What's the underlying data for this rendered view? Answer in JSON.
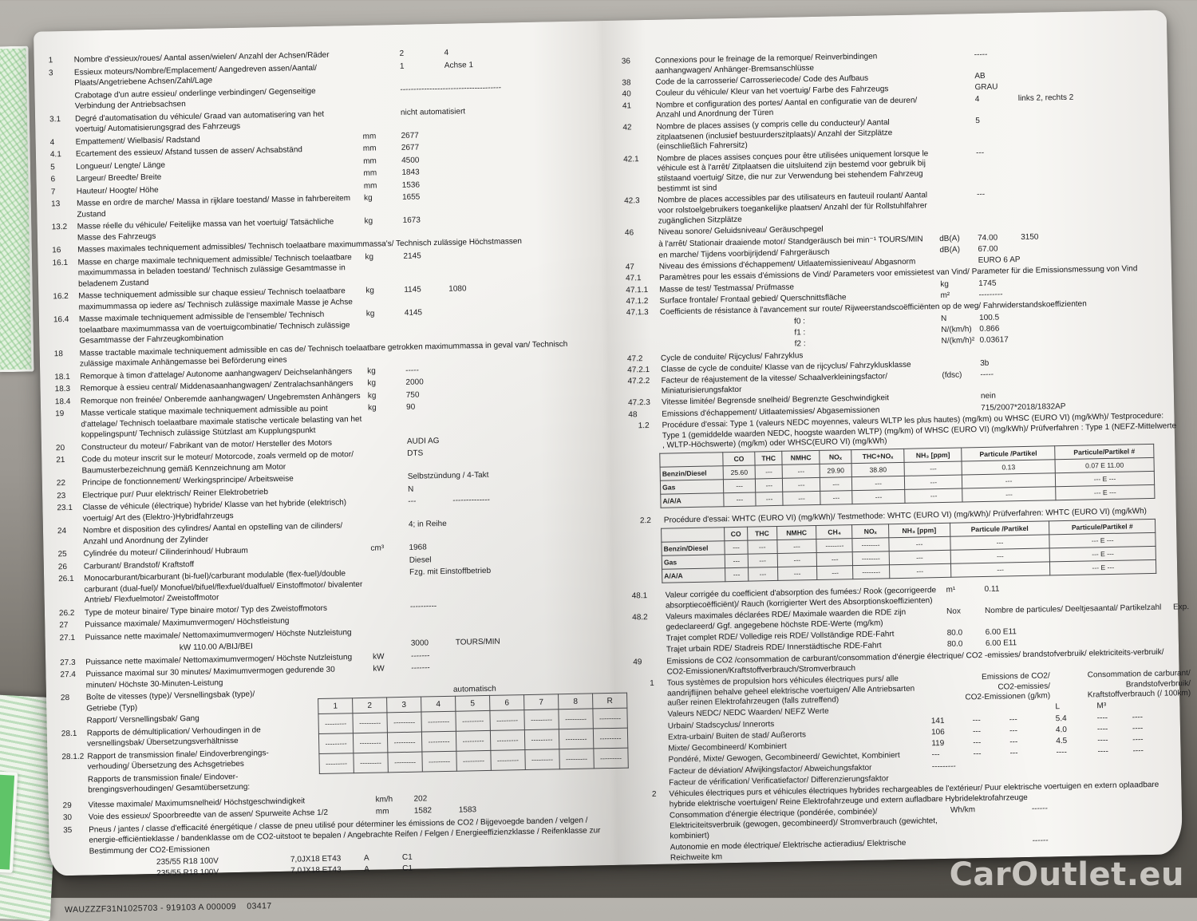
{
  "watermark": "CarOutlet.eu",
  "left_page": {
    "rows_a": [
      {
        "n": "1",
        "l": "Nombre d'essieux/roues/ Aantal assen/wielen/ Anzahl der Achsen/Räder",
        "u": "",
        "v": "2",
        "v2": "4"
      },
      {
        "n": "3",
        "l": "Essieux moteurs/Nombre/Emplacement/ Aangedreven assen/Aantal/ Plaats/Angetriebene Achsen/Zahl/Lage",
        "u": "",
        "v": "1",
        "v2": "Achse 1"
      },
      {
        "n": "",
        "l": "Crabotage d'un autre essieu/ onderlinge verbindingen/ Gegenseitige Verbindung der Antriebsachsen",
        "u": "",
        "v": "--------------------------------------",
        "v2": ""
      },
      {
        "n": "3.1",
        "l": "Degré d'automatisation du véhicule/ Graad van automatisering van het voertuig/ Automatisierungsgrad des Fahrzeugs",
        "u": "",
        "v": "nicht automatisiert",
        "v2": ""
      },
      {
        "n": "4",
        "l": "Empattement/ Wielbasis/ Radstand",
        "u": "mm",
        "v": "2677",
        "v2": ""
      },
      {
        "n": "4.1",
        "l": "Ecartement des essieux/ Afstand tussen de assen/ Achsabständ",
        "u": "mm",
        "v": "2677",
        "v2": ""
      },
      {
        "n": "5",
        "l": "Longueur/ Lengte/ Länge",
        "u": "mm",
        "v": "4500",
        "v2": ""
      },
      {
        "n": "6",
        "l": "Largeur/ Breedte/ Breite",
        "u": "mm",
        "v": "1843",
        "v2": ""
      },
      {
        "n": "7",
        "l": "Hauteur/ Hoogte/ Höhe",
        "u": "mm",
        "v": "1536",
        "v2": ""
      },
      {
        "n": "13",
        "l": "Masse en ordre de marche/ Massa in rijklare toestand/ Masse in fahrbereitem Zustand",
        "u": "kg",
        "v": "1655",
        "v2": ""
      },
      {
        "n": "13.2",
        "l": "Masse réelle du véhicule/ Feitelijke massa van het voertuig/ Tatsächliche Masse des Fahrzeugs",
        "u": "kg",
        "v": "1673",
        "v2": ""
      },
      {
        "n": "16",
        "l": "Masses maximales techniquement admissibles/ Technisch toelaatbare maximummassa's/ Technisch zulässige Höchstmassen",
        "cls": "full"
      },
      {
        "n": "16.1",
        "l": "Masse en charge maximale techniquement admissible/ Technisch toelaatbare maximummassa in beladen toestand/ Technisch zulässige Gesamtmasse in beladenem Zustand",
        "u": "kg",
        "v": "2145",
        "v2": ""
      },
      {
        "n": "16.2",
        "l": "Masse techniquement admissible sur chaque essieu/ Technisch toelaatbare maximummassa op iedere as/ Technisch zulässige maximale Masse je Achse",
        "u": "kg",
        "v": "1145",
        "v2": "1080"
      },
      {
        "n": "16.4",
        "l": "Masse maximale techniquement admissible de l'ensemble/ Technisch toelaatbare maximummassa van de voertuigcombinatie/ Technisch zulässige Gesamtmasse der Fahrzeugkombination",
        "u": "kg",
        "v": "4145",
        "v2": ""
      },
      {
        "n": "18",
        "l": "Masse tractable maximale techniquement admissible en cas de/ Technisch toelaatbare getrokken maximummassa in geval van/ Technisch zulässige maximale Anhängemasse bei Beförderung eines",
        "cls": "full"
      },
      {
        "n": "18.1",
        "l": "Remorque à timon d'attelage/ Autonome aanhangwagen/ Deichselanhängers",
        "u": "kg",
        "v": "-----",
        "v2": ""
      },
      {
        "n": "18.3",
        "l": "Remorque à essieu central/ Middenasaanhangwagen/ Zentralachsanhängers",
        "u": "kg",
        "v": "2000",
        "v2": ""
      },
      {
        "n": "18.4",
        "l": "Remorque non freinée/ Onberemde aanhangwagen/ Ungebremsten Anhängers",
        "u": "kg",
        "v": "750",
        "v2": ""
      },
      {
        "n": "19",
        "l": "Masse verticale statique maximale techniquement admissible au point d'attelage/ Technisch toelaatbare maximale statische verticale belasting van het koppelingspunt/ Technisch zulässige Stützlast am Kupplungspunkt",
        "u": "kg",
        "v": "90",
        "v2": ""
      },
      {
        "n": "20",
        "l": "Constructeur du moteur/ Fabrikant van de motor/ Hersteller des Motors",
        "u": "",
        "v": "AUDI AG",
        "v2": ""
      },
      {
        "n": "21",
        "l": "Code du moteur inscrit sur le moteur/ Motorcode, zoals vermeld op de motor/ Baumusterbezeichnung gemäß Kennzeichnung am Motor",
        "u": "",
        "v": "DTS",
        "v2": ""
      },
      {
        "n": "22",
        "l": "Principe de fonctionnement/ Werkingsprincipe/ Arbeitsweise",
        "u": "",
        "v": "Selbstzündung / 4-Takt",
        "v2": ""
      },
      {
        "n": "23",
        "l": "Electrique pur/ Puur elektrisch/ Reiner Elektrobetrieb",
        "u": "",
        "v": "N",
        "v2": ""
      },
      {
        "n": "23.1",
        "l": "Classe de véhicule (électrique) hybride/ Klasse van het hybride (elektrisch) voertuig/ Art des (Elektro-)Hybridfahrzeugs",
        "u": "",
        "v": "---",
        "v2": "--------------"
      },
      {
        "n": "24",
        "l": "Nombre et disposition des cylindres/ Aantal en opstelling van de cilinders/ Anzahl und Anordnung der Zylinder",
        "u": "",
        "v": "4; in Reihe",
        "v2": ""
      },
      {
        "n": "25",
        "l": "Cylindrée du moteur/ Cilinderinhoud/ Hubraum",
        "u": "cm³",
        "v": "1968",
        "v2": ""
      },
      {
        "n": "26",
        "l": "Carburant/ Brandstof/ Kraftstoff",
        "u": "",
        "v": "Diesel",
        "v2": ""
      },
      {
        "n": "26.1",
        "l": "Monocarburant/bicarburant (bi-fuel)/carburant modulable (flex-fuel)/double carburant (dual-fuel)/ Monofuel/bifuel/flexfuel/dualfuel/ Einstoffmotor/ bivalenter Antrieb/ Flexfuelmotor/ Zweistoffmotor",
        "u": "",
        "v": "Fzg. mit Einstoffbetrieb",
        "v2": ""
      },
      {
        "n": "26.2",
        "l": "Type de moteur binaire/ Type binaire motor/ Typ des Zweistoffmotors",
        "u": "",
        "v": "----------",
        "v2": ""
      },
      {
        "n": "27",
        "l": "Puissance maximale/ Maximumvermogen/ Höchstleistung",
        "cls": "full"
      },
      {
        "n": "27.1",
        "l": "Puissance nette maximale/ Nettomaximumvermogen/ Höchste Nutzleistung",
        "cls": "full"
      },
      {
        "n": "",
        "l": "kW  110.00 A/BIJ/BEI",
        "u": "",
        "v": "3000",
        "v2": "TOURS/MIN",
        "cls": "kwline"
      },
      {
        "n": "27.3",
        "l": "Puissance nette maximale/ Nettomaximumvermogen/ Höchste Nutzleistung",
        "u": "kW",
        "v": "-------",
        "v2": ""
      },
      {
        "n": "27.4",
        "l": "Puissance maximal sur 30 minutes/ Maximumvermogen gedurende 30 minuten/ Höchste 30-Minuten-Leistung",
        "u": "kW",
        "v": "-------",
        "v2": ""
      }
    ],
    "gear": {
      "labels": [
        {
          "n": "28",
          "l": "Boîte de vitesses (type)/ Versnellingsbak (type)/ Getriebe (Typ)"
        },
        {
          "n": "",
          "l": "Rapport/ Versnellingsbak/ Gang"
        },
        {
          "n": "28.1",
          "l": "Rapports de démultiplication/ Verhoudingen in de versnellingsbak/ Übersetzungsverhältnisse"
        },
        {
          "n": "28.1.2",
          "l": "Rapport de transmission finale/ Eindoverbrengings- verhouding/ Übersetzung des Achsgetriebes"
        },
        {
          "n": "",
          "l": "Rapports de transmission finale/ Eindover- brengingsverhoudingen/ Gesamtübersetzung:"
        }
      ],
      "type_value": "automatisch",
      "headers": [
        "1",
        "2",
        "3",
        "4",
        "5",
        "6",
        "7",
        "8",
        "R"
      ],
      "dash": "---------",
      "data_row_count": 3
    },
    "rows_b": [
      {
        "n": "29",
        "l": "Vitesse maximale/ Maximumsnelheid/ Höchstgeschwindigkeit",
        "u": "km/h",
        "v": "202",
        "v2": ""
      },
      {
        "n": "30",
        "l": "Voie des essieux/ Spoorbreedte van de assen/ Spurweite Achse 1/2",
        "u": "mm",
        "v": "1582",
        "v2": "1583"
      },
      {
        "n": "35",
        "l": "Pneus / jantes / classe d'efficacité énergétique / classe de pneu utilisé pour déterminer les émissions de CO2 / Bijgevoegde banden / velgen / energie-efficiëntieklasse / bandenklasse om de CO2-uitstoot te bepalen / Angebrachte Reifen / Felgen / Energieeffizienzklasse / Reifenklasse zur Bestimmung der CO2-Emissionen",
        "cls": "full"
      }
    ],
    "tyres": [
      {
        "tyre": "235/55 R18 100V",
        "rim": "7,0JX18 ET43",
        "cl": "A",
        "co2cl": "C1"
      },
      {
        "tyre": "235/55 R18 100V",
        "rim": "7,0JX18 ET43",
        "cl": "A",
        "co2cl": "C1"
      }
    ],
    "footer": "WAUZZZF31N1025703 - 919103 A 000009    03417"
  },
  "right_page": {
    "rows_a": [
      {
        "n": "36",
        "l": "Connexions pour le freinage de la remorque/ Reinverbindingen aanhangwagen/ Anhänger-Bremsanschlüsse",
        "u": "",
        "v": "-----",
        "v2": ""
      },
      {
        "n": "38",
        "l": "Code de la carrosserie/ Carrosseriecode/ Code des Aufbaus",
        "u": "",
        "v": "AB",
        "v2": ""
      },
      {
        "n": "40",
        "l": "Couleur du véhicule/ Kleur van het voertuig/ Farbe des Fahrzeugs",
        "u": "",
        "v": "GRAU",
        "v2": ""
      },
      {
        "n": "41",
        "l": "Nombre et configuration des portes/ Aantal en configuratie van de deuren/ Anzahl und Anordnung der Türen",
        "u": "",
        "v": "4",
        "v2": "links 2, rechts 2"
      },
      {
        "n": "42",
        "l": "Nombre de places assises (y compris celle du conducteur)/ Aantal zitplaatsenen (inclusief bestuurderszitplaats)/ Anzahl der Sitzplätze (einschließlich Fahrersitz)",
        "u": "",
        "v": "5",
        "v2": ""
      },
      {
        "n": "42.1",
        "l": "Nombre de places assises conçues pour être utilisées uniquement lorsque le véhicule est à l'arrêt/ Zitplaatsen die uitsluitend zijn bestemd voor gebruik bij stilstaand voertuig/ Sitze, die nur zur Verwendung bei stehendem Fahrzeug bestimmt ist sind",
        "u": "",
        "v": "---",
        "v2": ""
      },
      {
        "n": "42.3",
        "l": "Nombre de places accessibles par des utilisateurs en fauteuil roulant/ Aantal voor rolstoelgebruikers toegankelijke plaatsen/ Anzahl der für Rollstuhlfahrer zugänglichen Sitzplätze",
        "u": "",
        "v": "---",
        "v2": ""
      },
      {
        "n": "46",
        "l": "Niveau sonore/ Geluidsniveau/  Geräuschpegel",
        "cls": "full"
      },
      {
        "n": "",
        "l": "à l'arrêt/ Stationair draaiende motor/ Standgeräusch bei min⁻¹ TOURS/MIN",
        "u": "dB(A)",
        "v": "74.00",
        "v2": "3150"
      },
      {
        "n": "",
        "l": "en marche/ Tijdens voorbijrijdend/ Fahrgeräusch",
        "u": "dB(A)",
        "v": "67.00",
        "v2": ""
      },
      {
        "n": "47",
        "l": "Niveau des émissions d'échappement/ Uitlaatemissieniveau/ Abgasnorm",
        "u": "",
        "v": "EURO 6 AP",
        "v2": ""
      },
      {
        "n": "47.1",
        "l": "Paramètres pour les essais d'émissions de Vind/ Parameters voor emissietest van Vind/ Parameter für die Emissionsmessung von Vind",
        "cls": "full"
      },
      {
        "n": "47.1.1",
        "l": "Masse de test/ Testmassa/ Prüfmasse",
        "u": "kg",
        "v": "1745",
        "v2": ""
      },
      {
        "n": "47.1.2",
        "l": "Surface frontale/ Frontaal gebied/ Querschnittsfläche",
        "u": "m²",
        "v": "---------",
        "v2": ""
      },
      {
        "n": "47.1.3",
        "l": "Coefficients de résistance à l'avancement sur route/ Rijweerstandscoëfficiënten op de weg/ Fahrwiderstandskoeffizienten",
        "cls": "full"
      },
      {
        "n": "",
        "l": "f0 :",
        "u": "N",
        "v": "100.5",
        "v2": "",
        "cls": "indent"
      },
      {
        "n": "",
        "l": "f1 :",
        "u": "N/(km/h)",
        "v": "0.866",
        "v2": "",
        "cls": "indent"
      },
      {
        "n": "",
        "l": "f2 :",
        "u": "N/(km/h)²",
        "v": "0.03617",
        "v2": "",
        "cls": "indent"
      },
      {
        "n": "47.2",
        "l": "Cycle de conduite/ Rijcyclus/ Fahrzyklus",
        "cls": "full"
      },
      {
        "n": "47.2.1",
        "l": "Classe de cycle de conduite/ Klasse van de rijcyclus/ Fahrzyklusklasse",
        "u": "",
        "v": "3b",
        "v2": ""
      },
      {
        "n": "47.2.2",
        "l": "Facteur de réajustement de la vitesse/ Schaalverkleiningsfactor/ Miniaturisierungsfaktor",
        "u": "(fdsc)",
        "v": "-----",
        "v2": ""
      },
      {
        "n": "47.2.3",
        "l": "Vitesse limitée/ Begrensde snelheid/ Begrenzte Geschwindigkeit",
        "u": "",
        "v": "nein",
        "v2": ""
      },
      {
        "n": "48",
        "l": "Emissions d'échappement/ Uitlaatemissies/ Abgasemissionen",
        "u": "",
        "v": "715/2007*2018/1832AP",
        "v2": ""
      },
      {
        "n": "1.2",
        "l": "Procédure d'essai: Type 1 (valeurs NEDC moyennes, valeurs WLTP les plus hautes) (mg/km) ou WHSC (EURO VI) (mg/kWh)/ Testprocedure: Type 1 (gemiddelde waarden NEDC, hoogste waarden WLTP) (mg/km) of WHSC (EURO VI) (mg/kWh)/ Prüfverfahren : Type 1 (NEFZ-Mittelwerte , WLTP-Höchswerte) (mg/km) oder WHSC(EURO VI) (mg/kWh)",
        "cls": "full subnum"
      }
    ],
    "table1": {
      "cols": [
        "",
        "CO",
        "THC",
        "NMHC",
        "NOₓ",
        "THC+NOₓ",
        "NH₃ [ppm]",
        "Particule /Partikel",
        "Particule/Partikel #"
      ],
      "rows": [
        [
          "Benzin/Diesel",
          "25.60",
          "---",
          "---",
          "29.90",
          "38.80",
          "---",
          "0.13",
          "0.07 E 11.00"
        ],
        [
          "Gas",
          "---",
          "---",
          "---",
          "---",
          "---",
          "---",
          "---",
          "--- E ---"
        ],
        [
          "A/A/A",
          "---",
          "---",
          "---",
          "---",
          "---",
          "---",
          "---",
          "--- E ---"
        ]
      ]
    },
    "rows_b1": [
      {
        "n": "2.2",
        "l": "Procédure d'essai: WHTC (EURO VI) (mg/kWh)/ Testmethode: WHTC (EURO VI) (mg/kWh)/ Prüfverfahren: WHTC (EURO VI) (mg/kWh)",
        "cls": "full subnum"
      }
    ],
    "table2": {
      "cols": [
        "",
        "CO",
        "THC",
        "NMHC",
        "CH₄",
        "NOₓ",
        "NH₃ [ppm]",
        "Particule /Partikel",
        "Particule/Partikel #"
      ],
      "rows": [
        [
          "Benzin/Diesel",
          "---",
          "---",
          "---",
          "--------",
          "--------",
          "---",
          "---",
          "--- E ---"
        ],
        [
          "Gas",
          "---",
          "---",
          "---",
          "---",
          "--------",
          "---",
          "---",
          "--- E ---"
        ],
        [
          "A/A/A",
          "---",
          "---",
          "---",
          "---",
          "--------",
          "---",
          "---",
          "--- E ---"
        ]
      ]
    },
    "rows_c": [
      {
        "n": "48.1",
        "l": "Valeur corrigée du coefficient d'absorption des fumées:/ Rook (gecorrigeerde absorptiecoëfficiënt)/ Rauch (korrigierter Wert des Absorptionskoeffizienten)",
        "u": "m¹",
        "v": "0.11",
        "v2": ""
      },
      {
        "n": "48.2",
        "l": "Valeurs maximales déclarées RDE/ Maximale waarden die RDE zijn gedeclareerd/ Ggf. angegebene höchste RDE-Werte  (mg/km)",
        "u": "Nox",
        "v": "Nombre de particules/ Deeltjesaantal/ Partikelzahl",
        "v2": "Exp.",
        "cls": "vwide"
      },
      {
        "n": "",
        "l": "Trajet complet RDE/ Volledige reis RDE/ Vollständige RDE-Fahrt",
        "u": "80.0",
        "v": "6.00 E11",
        "v2": ""
      },
      {
        "n": "",
        "l": "Trajet urbain RDE/ Stadreis RDE/ Innerstädtische RDE-Fahrt",
        "u": "80.0",
        "v": "6.00 E11",
        "v2": ""
      },
      {
        "n": "49",
        "l": "Emissions de CO2 /consommation de carburant/consommation d'énergie électrique/ CO2 -emissies/ brandstofverbruik/ elektriciteits-verbruik/ CO2-Emissionen/Kraftstoffverbrauch/Stromverbrauch",
        "cls": "full"
      }
    ],
    "co2": {
      "num": "1",
      "intro": "Tous systèmes de propulsion hors véhicules électriques purs/ alle aandrijflijnen behalve geheel elektrische voertuigen/ Alle Antriebsarten außer reinen Elektrofahrzeugen (falls zutreffend)",
      "header_left": "Emissions de CO2/\nCO2-emissies/\nCO2-Emissionen (g/km)",
      "header_right": "Consommation de carburant/\nBrandstofverbruik/\nKraftstoffverbrauch (/ 100km)",
      "rows": [
        {
          "l": "Valeurs NEDC/ NEDC Waarden/ NEFZ Werte",
          "c": [
            "",
            "",
            "",
            "L",
            "M³",
            ""
          ]
        },
        {
          "l": "Urbain/ Stadscyclus/ Innerorts",
          "c": [
            "141",
            "---",
            "---",
            "5.4",
            "----",
            "----"
          ]
        },
        {
          "l": "Extra-urbain/ Buiten de stad/ Außerorts",
          "c": [
            "106",
            "---",
            "---",
            "4.0",
            "----",
            "----"
          ]
        },
        {
          "l": "Mixte/ Gecombineerd/ Kombiniert",
          "c": [
            "119",
            "---",
            "---",
            "4.5",
            "----",
            "----"
          ]
        },
        {
          "l": "Pondéré, Mixte/ Gewogen, Gecombineerd/ Gewichtet, Kombiniert",
          "c": [
            "---",
            "---",
            "---",
            "----",
            "----",
            "----"
          ]
        },
        {
          "l": "Facteur de déviation/ Afwijkingsfactor/ Abweichungsfaktor",
          "c": [
            "---------",
            "",
            "",
            "",
            "",
            ""
          ]
        },
        {
          "l": "Facteur de vérification/ Verificatiefactor/ Differenzierungsfaktor",
          "c": [
            "",
            "",
            "",
            "",
            "",
            ""
          ]
        }
      ]
    },
    "rows_d": [
      {
        "n": "2",
        "l": "Véhicules électriques purs et véhicules électriques hybrides rechargeables de l'extérieur/ Puur elektrische voertuigen en extern oplaadbare hybride elektrische voertuigen/ Reine Elektrofahrzeuge und extern aufladbare Hybridelektrofahrzeuge",
        "cls": "full subnum"
      },
      {
        "n": "",
        "l": "Consommation d'énergie électrique (pondérée, combinée)/ Elektriciteitsverbruik (gewogen, gecombineerd)/ Stromverbrauch (gewichtet, kombiniert)",
        "u": "Wh/km",
        "v": "",
        "v2": "------"
      },
      {
        "n": "",
        "l": "Autonomie en mode électrique/ Elektrische actieradius/ Elektrische Reichweite  km",
        "u": "",
        "v": "",
        "v2": "------"
      }
    ]
  }
}
